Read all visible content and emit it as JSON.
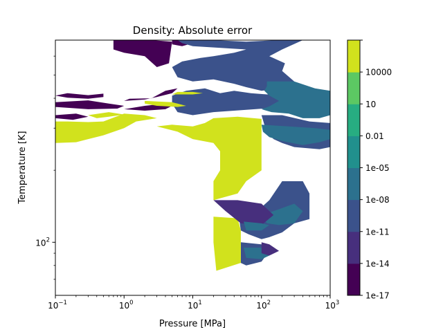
{
  "chart_data": {
    "type": "heatmap",
    "title": "Density: Absolute error",
    "xlabel": "Pressure [MPa]",
    "ylabel": "Temperature [K]",
    "x_scale": "log",
    "y_scale": "log",
    "xlim": [
      0.1,
      1000
    ],
    "ylim": [
      60,
      700
    ],
    "x_ticks": [
      {
        "value": 0.1,
        "base": "10",
        "exp": "−1"
      },
      {
        "value": 1,
        "base": "10",
        "exp": "0"
      },
      {
        "value": 10,
        "base": "10",
        "exp": "1"
      },
      {
        "value": 100,
        "base": "10",
        "exp": "2"
      },
      {
        "value": 1000,
        "base": "10",
        "exp": "3"
      }
    ],
    "y_ticks": [
      {
        "value": 100,
        "base": "10",
        "exp": "2"
      }
    ],
    "colorbar": {
      "scale": "log",
      "levels": [
        {
          "label": "1e-17",
          "color": "#440154"
        },
        {
          "label": "1e-14",
          "color": "#472f7d"
        },
        {
          "label": "1e-11",
          "color": "#3b528b"
        },
        {
          "label": "1e-08",
          "color": "#2c718e"
        },
        {
          "label": "1e-05",
          "color": "#21908d"
        },
        {
          "label": "0.01",
          "color": "#27ad81"
        },
        {
          "label": "10",
          "color": "#5cc863"
        },
        {
          "label": "10000",
          "color": "#d1e21d"
        }
      ]
    },
    "regions": [
      {
        "level": 0,
        "poly": [
          [
            0.1,
            410
          ],
          [
            0.15,
            420
          ],
          [
            0.3,
            412
          ],
          [
            0.5,
            418
          ],
          [
            0.5,
            405
          ],
          [
            0.3,
            398
          ],
          [
            0.15,
            402
          ]
        ]
      },
      {
        "level": 0,
        "poly": [
          [
            0.1,
            385
          ],
          [
            0.3,
            392
          ],
          [
            0.6,
            380
          ],
          [
            1.0,
            372
          ],
          [
            0.8,
            362
          ],
          [
            0.3,
            360
          ],
          [
            0.1,
            368
          ]
        ]
      },
      {
        "level": 0,
        "poly": [
          [
            0.1,
            340
          ],
          [
            0.2,
            345
          ],
          [
            0.3,
            335
          ],
          [
            0.18,
            325
          ],
          [
            0.1,
            330
          ]
        ]
      },
      {
        "level": 0,
        "poly": [
          [
            0.7,
            700
          ],
          [
            2.5,
            700
          ],
          [
            5,
            690
          ],
          [
            4.5,
            560
          ],
          [
            3.0,
            540
          ],
          [
            2.0,
            600
          ],
          [
            1.0,
            620
          ],
          [
            0.7,
            640
          ]
        ]
      },
      {
        "level": 0,
        "poly": [
          [
            1.0,
            390
          ],
          [
            2.0,
            395
          ],
          [
            3.0,
            405
          ],
          [
            5,
            420
          ],
          [
            6,
            440
          ],
          [
            4,
            430
          ],
          [
            2.5,
            400
          ],
          [
            1.2,
            398
          ]
        ]
      },
      {
        "level": 0,
        "poly": [
          [
            1.0,
            360
          ],
          [
            2.0,
            372
          ],
          [
            4.0,
            380
          ],
          [
            5,
            372
          ],
          [
            4,
            360
          ],
          [
            2,
            355
          ]
        ]
      },
      {
        "level": 0,
        "poly": [
          [
            5,
            700
          ],
          [
            7,
            700
          ],
          [
            10,
            680
          ],
          [
            7,
            660
          ],
          [
            5,
            672
          ]
        ]
      },
      {
        "level": 2,
        "poly": [
          [
            6,
            700
          ],
          [
            20,
            700
          ],
          [
            60,
            690
          ],
          [
            180,
            700
          ],
          [
            400,
            700
          ],
          [
            200,
            640
          ],
          [
            130,
            600
          ],
          [
            220,
            560
          ],
          [
            200,
            520
          ],
          [
            300,
            470
          ],
          [
            200,
            440
          ],
          [
            100,
            430
          ],
          [
            60,
            445
          ],
          [
            40,
            460
          ],
          [
            20,
            480
          ],
          [
            10,
            470
          ],
          [
            6,
            490
          ],
          [
            5,
            540
          ],
          [
            7,
            570
          ],
          [
            13,
            590
          ],
          [
            20,
            600
          ],
          [
            40,
            620
          ],
          [
            60,
            640
          ],
          [
            10,
            660
          ],
          [
            7,
            680
          ]
        ]
      },
      {
        "level": 2,
        "poly": [
          [
            5,
            410
          ],
          [
            8,
            430
          ],
          [
            15,
            440
          ],
          [
            25,
            420
          ],
          [
            40,
            430
          ],
          [
            70,
            420
          ],
          [
            120,
            415
          ],
          [
            200,
            420
          ],
          [
            400,
            410
          ],
          [
            1000,
            410
          ],
          [
            1000,
            380
          ],
          [
            600,
            380
          ],
          [
            300,
            370
          ],
          [
            150,
            365
          ],
          [
            80,
            360
          ],
          [
            40,
            355
          ],
          [
            20,
            350
          ],
          [
            10,
            340
          ],
          [
            6,
            350
          ],
          [
            5,
            380
          ]
        ]
      },
      {
        "level": 3,
        "poly": [
          [
            120,
            470
          ],
          [
            300,
            470
          ],
          [
            600,
            440
          ],
          [
            1000,
            430
          ],
          [
            1000,
            340
          ],
          [
            700,
            330
          ],
          [
            400,
            330
          ],
          [
            250,
            345
          ],
          [
            140,
            350
          ],
          [
            100,
            360
          ],
          [
            130,
            370
          ],
          [
            180,
            390
          ],
          [
            130,
            410
          ],
          [
            110,
            430
          ],
          [
            120,
            450
          ]
        ]
      },
      {
        "level": 2,
        "poly": [
          [
            100,
            340
          ],
          [
            200,
            340
          ],
          [
            500,
            320
          ],
          [
            1000,
            315
          ],
          [
            1000,
            250
          ],
          [
            700,
            245
          ],
          [
            300,
            250
          ],
          [
            200,
            260
          ],
          [
            150,
            270
          ],
          [
            120,
            290
          ],
          [
            110,
            310
          ]
        ]
      },
      {
        "level": 3,
        "poly": [
          [
            100,
            310
          ],
          [
            250,
            305
          ],
          [
            600,
            300
          ],
          [
            1000,
            295
          ],
          [
            1000,
            270
          ],
          [
            700,
            262
          ],
          [
            400,
            255
          ],
          [
            200,
            265
          ],
          [
            130,
            275
          ],
          [
            105,
            290
          ]
        ]
      },
      {
        "level": 2,
        "poly": [
          [
            45,
            140
          ],
          [
            100,
            140
          ],
          [
            130,
            150
          ],
          [
            200,
            180
          ],
          [
            400,
            180
          ],
          [
            500,
            160
          ],
          [
            500,
            125
          ],
          [
            300,
            120
          ],
          [
            200,
            110
          ],
          [
            130,
            105
          ],
          [
            100,
            103
          ],
          [
            65,
            108
          ],
          [
            50,
            112
          ]
        ]
      },
      {
        "level": 3,
        "poly": [
          [
            100,
            130
          ],
          [
            150,
            135
          ],
          [
            300,
            145
          ],
          [
            400,
            135
          ],
          [
            300,
            120
          ],
          [
            180,
            118
          ],
          [
            120,
            120
          ]
        ]
      },
      {
        "level": 2,
        "poly": [
          [
            50,
            100
          ],
          [
            100,
            98
          ],
          [
            130,
            92
          ],
          [
            100,
            83
          ],
          [
            60,
            80
          ],
          [
            50,
            82
          ]
        ]
      },
      {
        "level": 3,
        "poly": [
          [
            55,
            95
          ],
          [
            100,
            95
          ],
          [
            130,
            88
          ],
          [
            100,
            85
          ],
          [
            60,
            86
          ]
        ]
      },
      {
        "level": 7,
        "poly": [
          [
            0.1,
            320
          ],
          [
            0.15,
            320
          ],
          [
            0.3,
            318
          ],
          [
            0.5,
            320
          ],
          [
            1.0,
            345
          ],
          [
            2.0,
            340
          ],
          [
            3.0,
            330
          ],
          [
            1.5,
            320
          ],
          [
            1.0,
            300
          ],
          [
            0.5,
            280
          ],
          [
            0.3,
            270
          ],
          [
            0.2,
            262
          ],
          [
            0.1,
            260
          ]
        ]
      },
      {
        "level": 7,
        "poly": [
          [
            0.3,
            340
          ],
          [
            0.6,
            350
          ],
          [
            1.0,
            342
          ],
          [
            0.6,
            335
          ],
          [
            0.4,
            330
          ]
        ]
      },
      {
        "level": 7,
        "poly": [
          [
            2.0,
            390
          ],
          [
            5.0,
            385
          ],
          [
            8.0,
            372
          ],
          [
            6.0,
            368
          ],
          [
            3.0,
            372
          ],
          [
            2.0,
            380
          ]
        ]
      },
      {
        "level": 7,
        "poly": [
          [
            5.0,
            415
          ],
          [
            10,
            415
          ],
          [
            14,
            420
          ],
          [
            10,
            425
          ],
          [
            6,
            425
          ]
        ]
      },
      {
        "level": 7,
        "poly": [
          [
            20,
            330
          ],
          [
            45,
            335
          ],
          [
            100,
            328
          ],
          [
            100,
            280
          ],
          [
            100,
            230
          ],
          [
            100,
            200
          ],
          [
            60,
            180
          ],
          [
            45,
            160
          ],
          [
            20,
            150
          ],
          [
            20,
            180
          ],
          [
            25,
            200
          ],
          [
            25,
            240
          ],
          [
            20,
            260
          ],
          [
            10,
            270
          ],
          [
            6,
            290
          ],
          [
            3,
            305
          ],
          [
            5,
            310
          ],
          [
            10,
            305
          ],
          [
            15,
            315
          ]
        ]
      },
      {
        "level": 7,
        "poly": [
          [
            20,
            128
          ],
          [
            45,
            126
          ],
          [
            50,
            112
          ],
          [
            50,
            82
          ],
          [
            22,
            76
          ],
          [
            20,
            100
          ]
        ]
      },
      {
        "level": 1,
        "poly": [
          [
            20,
            150
          ],
          [
            45,
            150
          ],
          [
            100,
            145
          ],
          [
            150,
            130
          ],
          [
            100,
            118
          ],
          [
            50,
            120
          ],
          [
            30,
            135
          ]
        ]
      },
      {
        "level": 3,
        "poly": [
          [
            55,
            122
          ],
          [
            100,
            120
          ],
          [
            130,
            118
          ],
          [
            100,
            112
          ],
          [
            60,
            112
          ]
        ]
      },
      {
        "level": 1,
        "poly": [
          [
            100,
            100
          ],
          [
            130,
            98
          ],
          [
            180,
            92
          ],
          [
            130,
            88
          ],
          [
            100,
            90
          ]
        ]
      }
    ]
  }
}
